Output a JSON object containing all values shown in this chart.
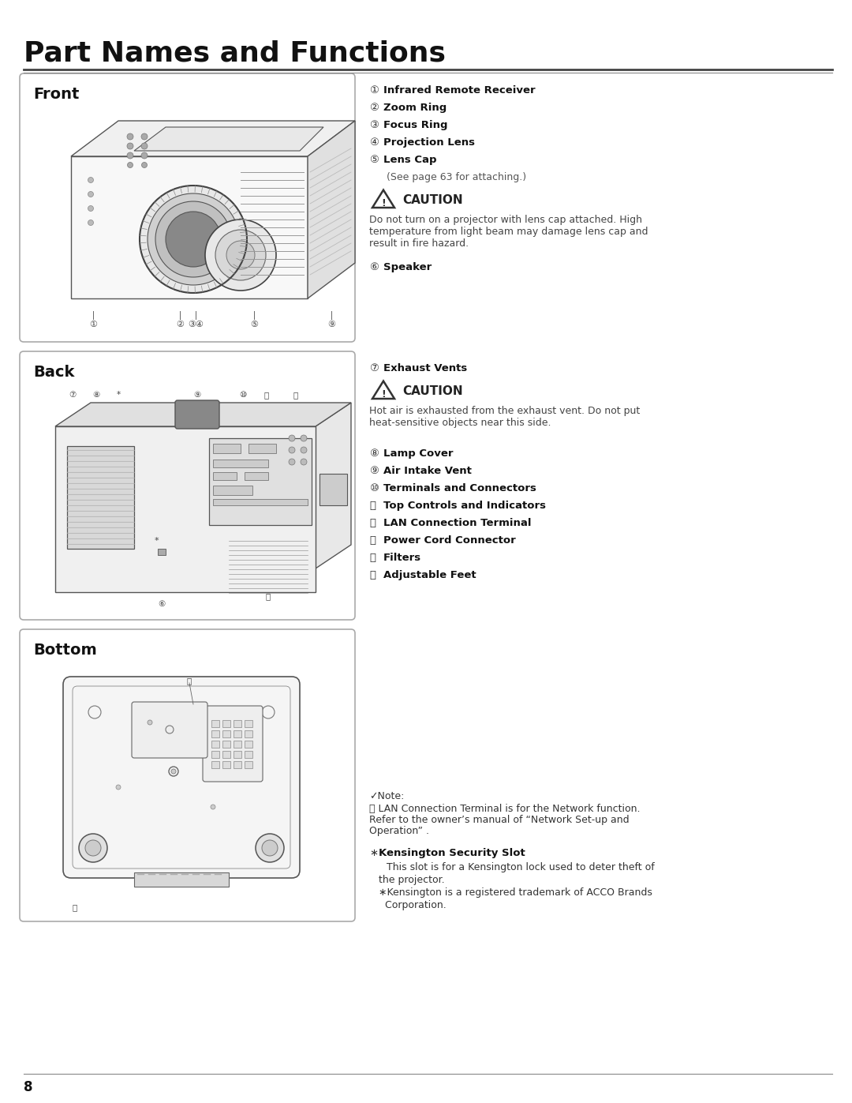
{
  "title": "Part Names and Functions",
  "bg_color": "#ffffff",
  "page_number": "8",
  "front_items": [
    [
      "①",
      "Infrared Remote Receiver"
    ],
    [
      "②",
      "Zoom Ring"
    ],
    [
      "③",
      "Focus Ring"
    ],
    [
      "④",
      "Projection Lens"
    ],
    [
      "⑤",
      "Lens Cap"
    ]
  ],
  "front_sub": "(See page 63 for attaching.)",
  "front_caution_text": "Do not turn on a projector with lens cap attached. High\ntemperature from light beam may damage lens cap and\nresult in fire hazard.",
  "front_item6": [
    "⑥",
    "Speaker"
  ],
  "back_item7": [
    "⑦",
    "Exhaust Vents"
  ],
  "back_caution_text": "Hot air is exhausted from the exhaust vent. Do not put\nheat-sensitive objects near this side.",
  "back_items": [
    [
      "⑧",
      "Lamp Cover"
    ],
    [
      "⑨",
      "Air Intake Vent"
    ],
    [
      "⑩",
      "Terminals and Connectors"
    ],
    [
      "⑪",
      "Top Controls and Indicators"
    ],
    [
      "⑫",
      "LAN Connection Terminal"
    ],
    [
      "⑬",
      "Power Cord Connector"
    ],
    [
      "⑭",
      "Filters"
    ],
    [
      "⑮",
      "Adjustable Feet"
    ]
  ],
  "note_line1": "✓Note:",
  "note_line2": "⑫ LAN Connection Terminal is for the Network function.",
  "note_line3": "Refer to the owner’s manual of “Network Set-up and",
  "note_line4": "Operation” .",
  "kensington_star": "∗",
  "kensington_title": "Kensington Security Slot",
  "kensington_body": "This slot is for a Kensington lock used to deter theft of\nthe projector.\n∗Kensington is a registered trademark of ACCO Brands\n  Corporation.",
  "caution_label": "CAUTION",
  "text_color": "#333333",
  "bold_color": "#111111",
  "box_border_color": "#aaaaaa",
  "title_underline_color": "#555555"
}
